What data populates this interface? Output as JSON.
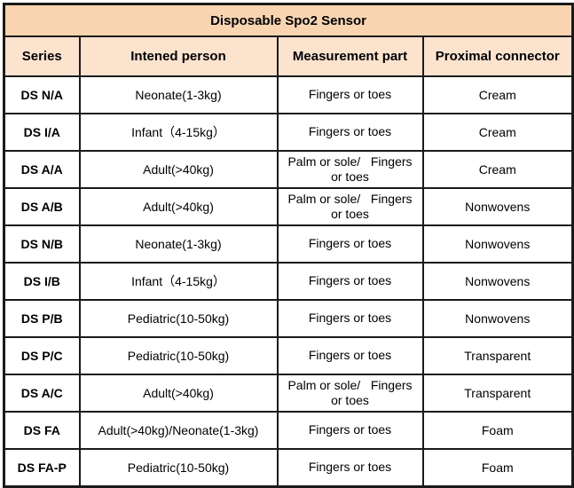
{
  "table": {
    "title": "Disposable Spo2 Sensor",
    "columns": {
      "series": "Series",
      "person": "Intened person",
      "part": "Measurement part",
      "connector": "Proximal connector"
    },
    "rows": [
      {
        "series": "DS N/A",
        "person": "Neonate(1-3kg)",
        "part": "Fingers or toes",
        "connector": "Cream"
      },
      {
        "series": "DS I/A",
        "person": "Infant（4-15kg）",
        "part": "Fingers or toes",
        "connector": "Cream"
      },
      {
        "series": "DS A/A",
        "person": "Adult(>40kg)",
        "part": "Palm or sole/   Fingers\nor toes",
        "connector": "Cream"
      },
      {
        "series": "DS A/B",
        "person": "Adult(>40kg)",
        "part": "Palm or sole/   Fingers\nor toes",
        "connector": "Nonwovens"
      },
      {
        "series": "DS N/B",
        "person": "Neonate(1-3kg)",
        "part": "Fingers or toes",
        "connector": "Nonwovens"
      },
      {
        "series": "DS I/B",
        "person": "Infant（4-15kg）",
        "part": "Fingers or toes",
        "connector": "Nonwovens"
      },
      {
        "series": "DS P/B",
        "person": "Pediatric(10-50kg)",
        "part": "Fingers or toes",
        "connector": "Nonwovens"
      },
      {
        "series": "DS P/C",
        "person": "Pediatric(10-50kg)",
        "part": "Fingers or toes",
        "connector": "Transparent"
      },
      {
        "series": "DS A/C",
        "person": "Adult(>40kg)",
        "part": "Palm or sole/   Fingers\nor toes",
        "connector": "Transparent"
      },
      {
        "series": "DS FA",
        "person": "Adult(>40kg)/Neonate(1-3kg)",
        "part": "Fingers or toes",
        "connector": "Foam"
      },
      {
        "series": "DS FA-P",
        "person": "Pediatric(10-50kg)",
        "part": "Fingers or toes",
        "connector": "Foam"
      }
    ],
    "colors": {
      "title_bg": "#F8D4B0",
      "header_bg": "#FBE3CE",
      "border": "#1A1A1A",
      "row_bg": "#FFFFFF",
      "text": "#000000"
    }
  }
}
